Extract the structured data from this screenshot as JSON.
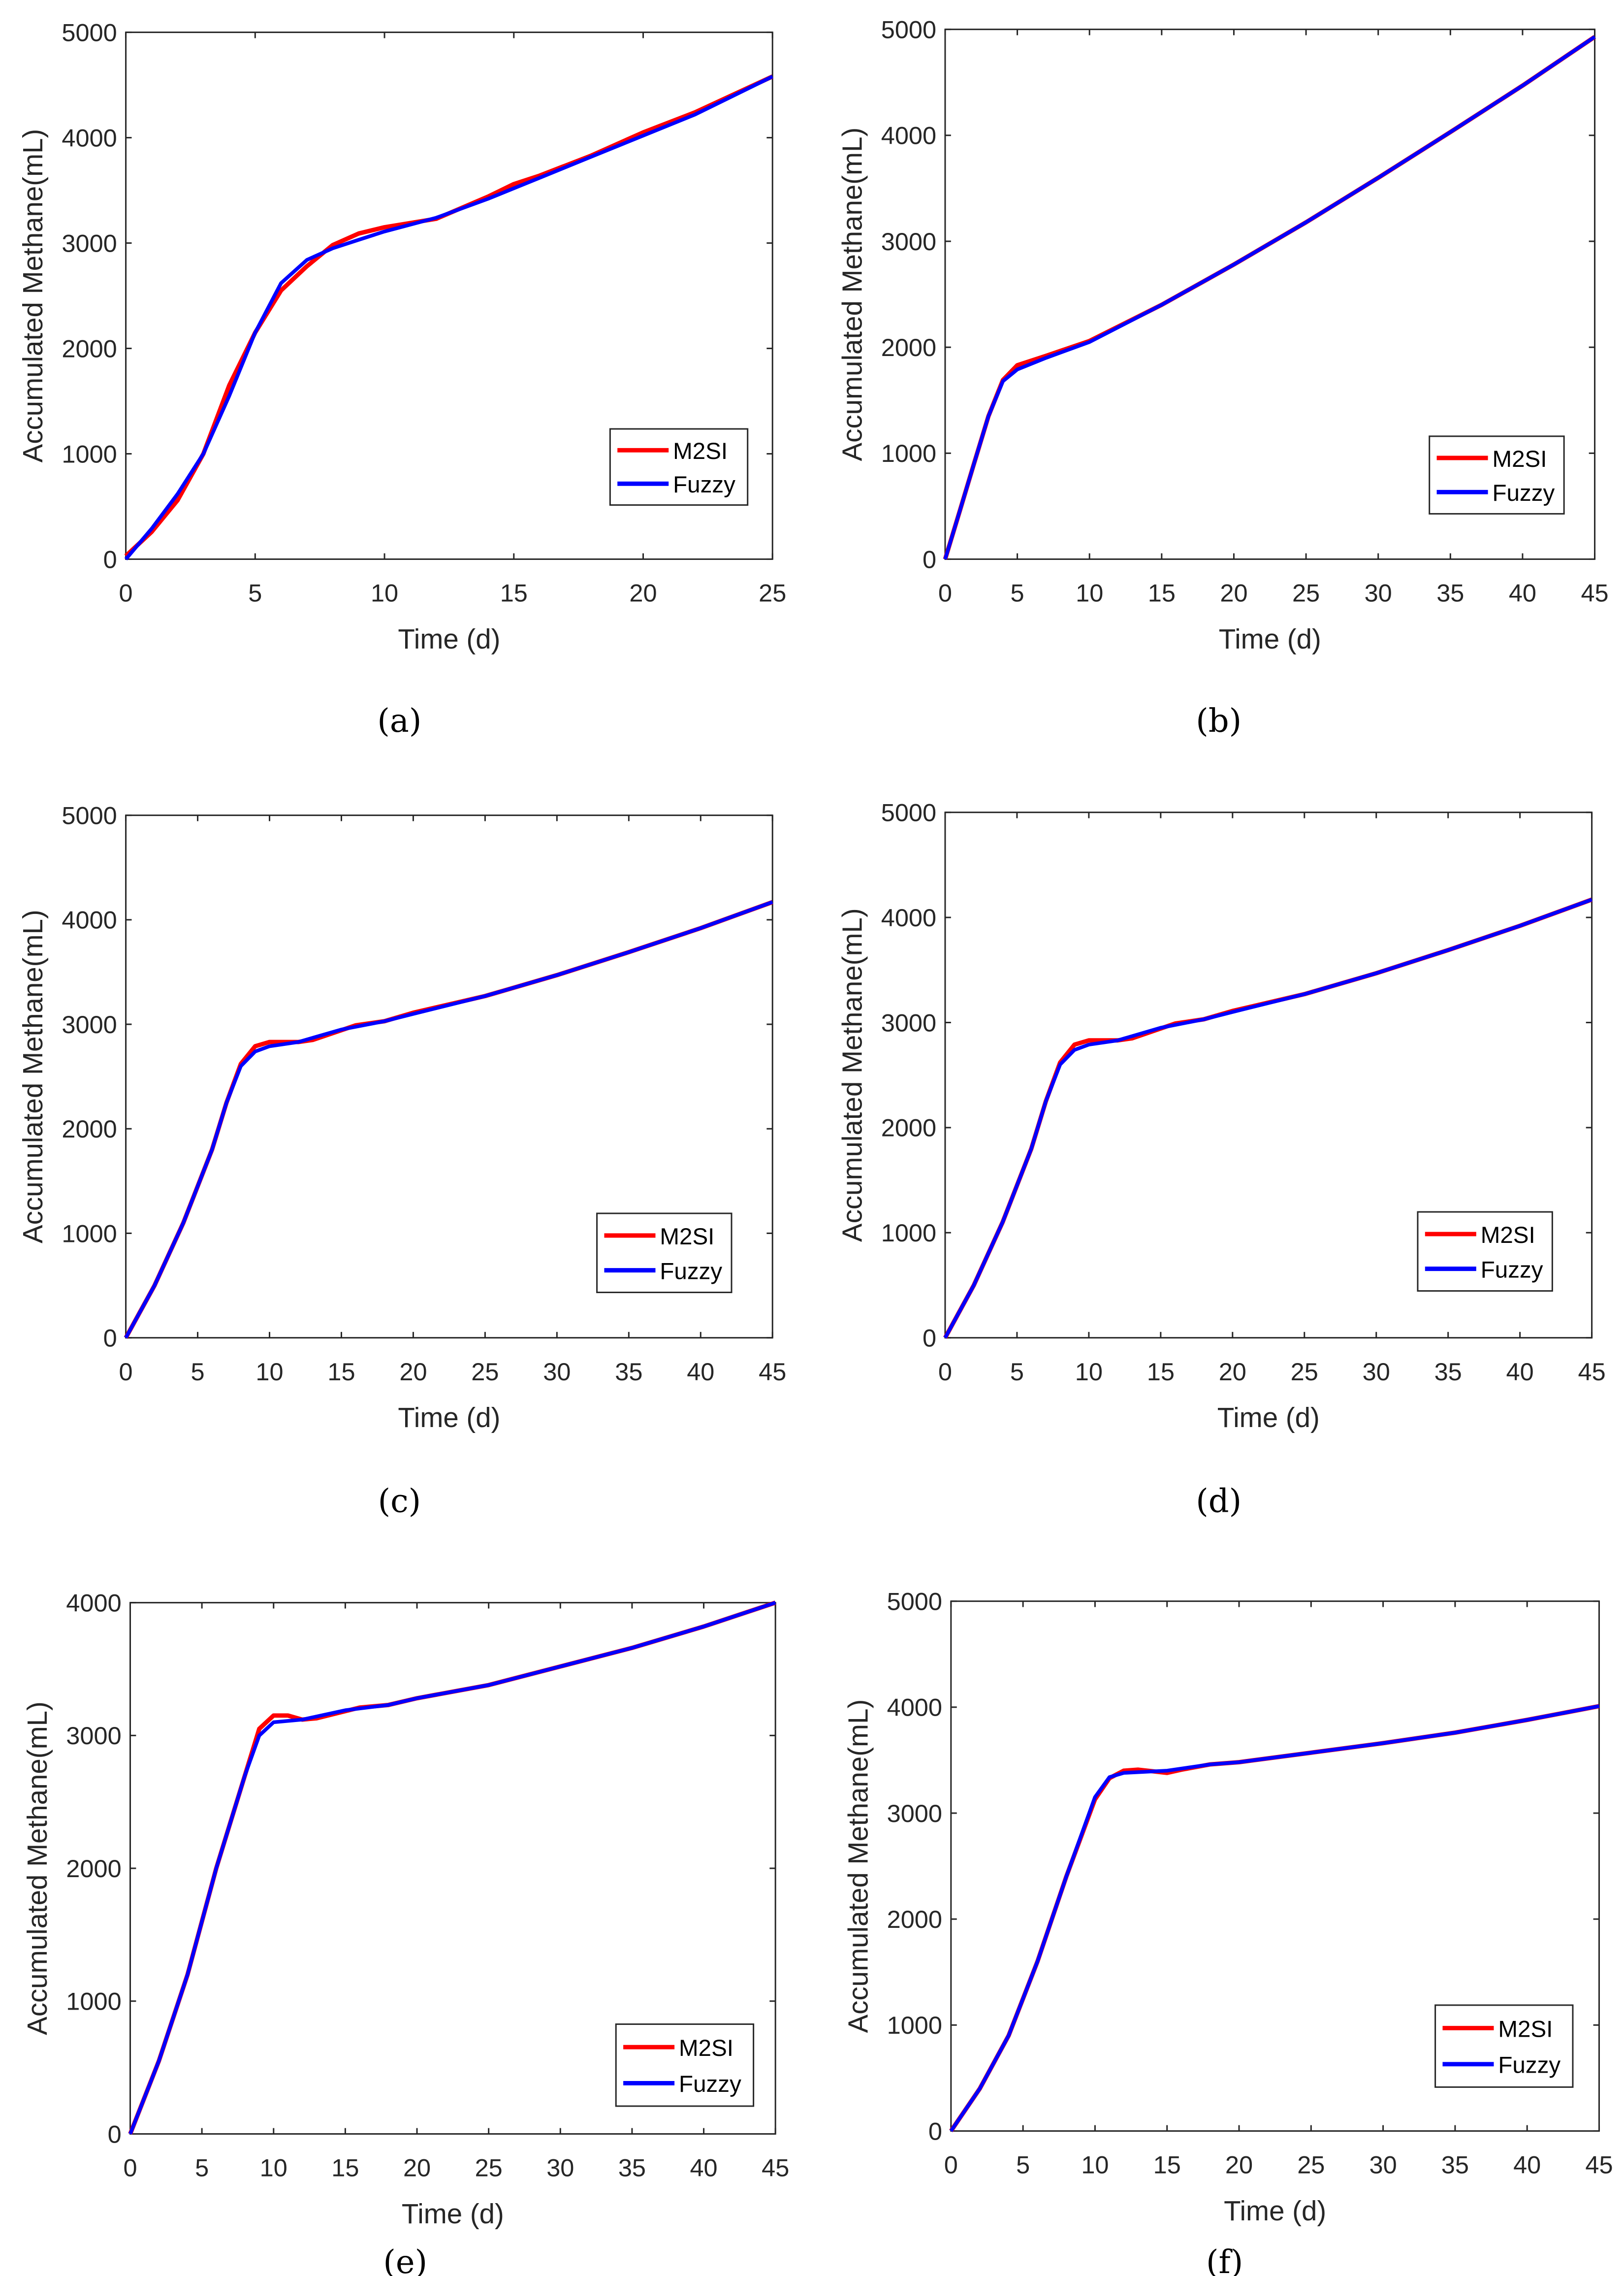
{
  "chart_data": [
    {
      "type": "line",
      "panel": "(a)",
      "xlabel": "Time (d)",
      "ylabel": "Accumulated Methane(mL)",
      "xlim": [
        0,
        25
      ],
      "ylim": [
        0,
        5000
      ],
      "xticks": [
        0,
        5,
        10,
        15,
        20,
        25
      ],
      "yticks": [
        0,
        1000,
        2000,
        3000,
        4000,
        5000
      ],
      "legend": "bottom-right",
      "grid": false,
      "series": [
        {
          "name": "M2SI",
          "color": "#ff0000",
          "x": [
            0,
            1,
            2,
            3,
            4,
            5,
            6,
            7,
            8,
            9,
            10,
            12,
            14,
            15,
            16,
            18,
            20,
            22,
            25
          ],
          "y": [
            30,
            260,
            560,
            1000,
            1650,
            2150,
            2550,
            2780,
            2980,
            3090,
            3150,
            3230,
            3440,
            3560,
            3640,
            3830,
            4050,
            4240,
            4580
          ]
        },
        {
          "name": "Fuzzy",
          "color": "#0000ff",
          "x": [
            0,
            1,
            2,
            3,
            4,
            5,
            6,
            7,
            8,
            9,
            10,
            12,
            14,
            16,
            18,
            20,
            22,
            25
          ],
          "y": [
            0,
            290,
            620,
            1000,
            1550,
            2150,
            2620,
            2840,
            2950,
            3030,
            3110,
            3240,
            3420,
            3620,
            3820,
            4020,
            4220,
            4580
          ]
        }
      ]
    },
    {
      "type": "line",
      "panel": "(b)",
      "xlabel": "Time (d)",
      "ylabel": "Accumulated Methane(mL)",
      "xlim": [
        0,
        45
      ],
      "ylim": [
        0,
        5000
      ],
      "xticks": [
        0,
        5,
        10,
        15,
        20,
        25,
        30,
        35,
        40,
        45
      ],
      "yticks": [
        0,
        1000,
        2000,
        3000,
        4000,
        5000
      ],
      "legend": "bottom-right",
      "grid": false,
      "series": [
        {
          "name": "M2SI",
          "color": "#ff0000",
          "x": [
            0,
            1,
            2,
            3,
            4,
            5,
            7,
            10,
            15,
            20,
            25,
            30,
            35,
            40,
            45
          ],
          "y": [
            0,
            450,
            900,
            1350,
            1690,
            1830,
            1920,
            2060,
            2400,
            2780,
            3180,
            3600,
            4030,
            4470,
            4930
          ]
        },
        {
          "name": "Fuzzy",
          "color": "#0000ff",
          "x": [
            0,
            1,
            2,
            3,
            4,
            5,
            7,
            10,
            15,
            20,
            25,
            30,
            35,
            40,
            45
          ],
          "y": [
            0,
            450,
            900,
            1350,
            1680,
            1790,
            1900,
            2050,
            2400,
            2780,
            3180,
            3600,
            4030,
            4470,
            4930
          ]
        }
      ]
    },
    {
      "type": "line",
      "panel": "(c)",
      "xlabel": "Time (d)",
      "ylabel": "Accumulated Methane(mL)",
      "xlim": [
        0,
        45
      ],
      "ylim": [
        0,
        5000
      ],
      "xticks": [
        0,
        5,
        10,
        15,
        20,
        25,
        30,
        35,
        40,
        45
      ],
      "yticks": [
        0,
        1000,
        2000,
        3000,
        4000,
        5000
      ],
      "legend": "bottom-right",
      "grid": false,
      "series": [
        {
          "name": "M2SI",
          "color": "#ff0000",
          "x": [
            0,
            2,
            4,
            6,
            7,
            8,
            9,
            10,
            12,
            13,
            16,
            18,
            20,
            25,
            30,
            35,
            40,
            45
          ],
          "y": [
            0,
            500,
            1100,
            1800,
            2250,
            2620,
            2790,
            2830,
            2830,
            2850,
            2990,
            3030,
            3110,
            3270,
            3470,
            3690,
            3920,
            4170
          ]
        },
        {
          "name": "Fuzzy",
          "color": "#0000ff",
          "x": [
            0,
            2,
            4,
            6,
            7,
            8,
            9,
            10,
            12,
            15,
            18,
            20,
            25,
            30,
            35,
            40,
            45
          ],
          "y": [
            0,
            500,
            1100,
            1800,
            2250,
            2600,
            2740,
            2790,
            2830,
            2950,
            3030,
            3100,
            3270,
            3470,
            3690,
            3920,
            4170
          ]
        }
      ]
    },
    {
      "type": "line",
      "panel": "(d)",
      "xlabel": "Time (d)",
      "ylabel": "Accumulated Methane(mL)",
      "xlim": [
        0,
        45
      ],
      "ylim": [
        0,
        5000
      ],
      "xticks": [
        0,
        5,
        10,
        15,
        20,
        25,
        30,
        35,
        40,
        45
      ],
      "yticks": [
        0,
        1000,
        2000,
        3000,
        4000,
        5000
      ],
      "legend": "bottom-right",
      "grid": false,
      "series": [
        {
          "name": "M2SI",
          "color": "#ff0000",
          "x": [
            0,
            2,
            4,
            6,
            7,
            8,
            9,
            10,
            12,
            13,
            16,
            18,
            20,
            25,
            30,
            35,
            40,
            45
          ],
          "y": [
            0,
            500,
            1100,
            1800,
            2250,
            2620,
            2790,
            2830,
            2830,
            2850,
            2990,
            3030,
            3110,
            3270,
            3470,
            3690,
            3920,
            4170
          ]
        },
        {
          "name": "Fuzzy",
          "color": "#0000ff",
          "x": [
            0,
            2,
            4,
            6,
            7,
            8,
            9,
            10,
            12,
            15,
            18,
            20,
            25,
            30,
            35,
            40,
            45
          ],
          "y": [
            0,
            500,
            1100,
            1800,
            2250,
            2600,
            2740,
            2790,
            2830,
            2950,
            3030,
            3100,
            3270,
            3470,
            3690,
            3920,
            4170
          ]
        }
      ]
    },
    {
      "type": "line",
      "panel": "(e)",
      "xlabel": "Time (d)",
      "ylabel": "Accumulated Methane(mL)",
      "xlim": [
        0,
        45
      ],
      "ylim": [
        0,
        4000
      ],
      "xticks": [
        0,
        5,
        10,
        15,
        20,
        25,
        30,
        35,
        40,
        45
      ],
      "yticks": [
        0,
        1000,
        2000,
        3000,
        4000
      ],
      "legend": "bottom-right",
      "grid": false,
      "series": [
        {
          "name": "M2SI",
          "color": "#ff0000",
          "x": [
            0,
            2,
            4,
            6,
            8,
            9,
            10,
            11,
            12,
            13,
            16,
            18,
            20,
            25,
            30,
            35,
            40,
            45
          ],
          "y": [
            0,
            550,
            1200,
            2000,
            2700,
            3050,
            3150,
            3150,
            3120,
            3130,
            3210,
            3230,
            3280,
            3380,
            3520,
            3660,
            3820,
            4000
          ]
        },
        {
          "name": "Fuzzy",
          "color": "#0000ff",
          "x": [
            0,
            2,
            4,
            6,
            8,
            9,
            10,
            12,
            15,
            18,
            20,
            25,
            30,
            35,
            40,
            45
          ],
          "y": [
            0,
            550,
            1200,
            2000,
            2700,
            3000,
            3100,
            3120,
            3190,
            3230,
            3280,
            3380,
            3520,
            3660,
            3820,
            4000
          ]
        }
      ]
    },
    {
      "type": "line",
      "panel": "(f)",
      "xlabel": "Time (d)",
      "ylabel": "Accumulated Methane(mL)",
      "xlim": [
        0,
        45
      ],
      "ylim": [
        0,
        5000
      ],
      "xticks": [
        0,
        5,
        10,
        15,
        20,
        25,
        30,
        35,
        40,
        45
      ],
      "yticks": [
        0,
        1000,
        2000,
        3000,
        4000,
        5000
      ],
      "legend": "bottom-right",
      "grid": false,
      "series": [
        {
          "name": "M2SI",
          "color": "#ff0000",
          "x": [
            0,
            2,
            4,
            6,
            8,
            10,
            11,
            12,
            13,
            15,
            16,
            18,
            20,
            25,
            30,
            35,
            40,
            45
          ],
          "y": [
            0,
            400,
            900,
            1600,
            2400,
            3130,
            3330,
            3400,
            3410,
            3380,
            3410,
            3460,
            3480,
            3570,
            3660,
            3760,
            3880,
            4010
          ]
        },
        {
          "name": "Fuzzy",
          "color": "#0000ff",
          "x": [
            0,
            2,
            4,
            6,
            8,
            10,
            11,
            12,
            15,
            18,
            20,
            25,
            30,
            35,
            40,
            45
          ],
          "y": [
            0,
            400,
            900,
            1600,
            2400,
            3150,
            3340,
            3380,
            3400,
            3460,
            3480,
            3570,
            3660,
            3760,
            3880,
            4010
          ]
        }
      ]
    }
  ]
}
